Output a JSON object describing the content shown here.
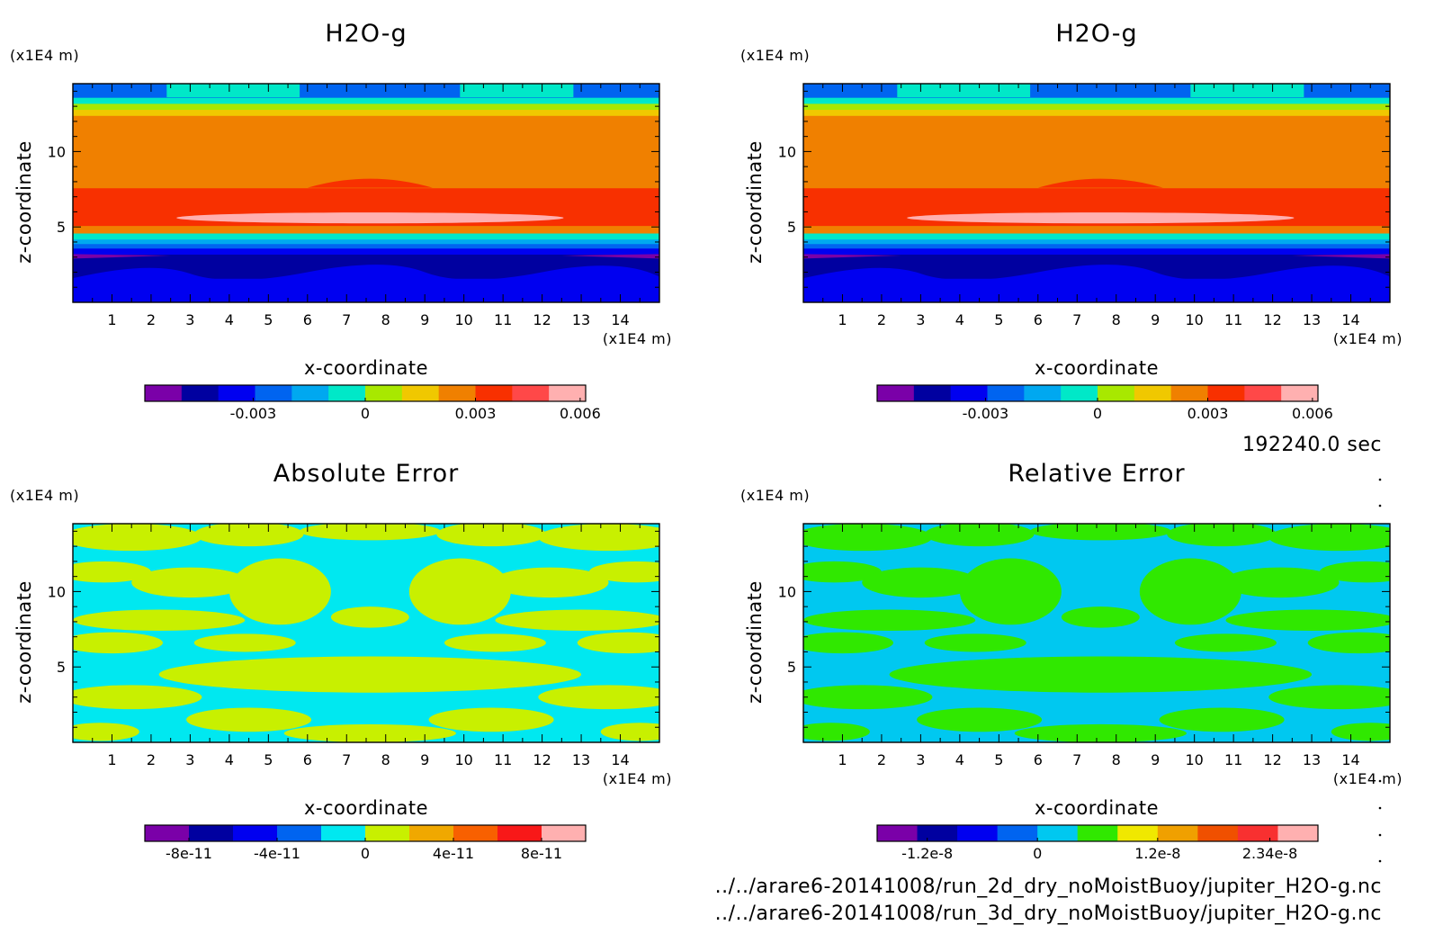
{
  "chart_data": [
    {
      "type": "heatmap",
      "title": "H2O-g",
      "xlabel": "x-coordinate",
      "ylabel": "z-coordinate",
      "x_unit": "(x1E4 m)",
      "y_unit": "(x1E4 m)",
      "xlim": [
        0,
        15
      ],
      "ylim": [
        0,
        14.5
      ],
      "x_ticks": [
        "1",
        "2",
        "3",
        "4",
        "5",
        "6",
        "7",
        "8",
        "9",
        "10",
        "11",
        "12",
        "13",
        "14"
      ],
      "y_ticks": [
        "5",
        "10"
      ],
      "bands": [
        {
          "z": [
            0,
            1.6
          ],
          "level": 2
        },
        {
          "z": [
            1.6,
            2.4
          ],
          "level": 1
        },
        {
          "z": [
            2.4,
            3.2
          ],
          "level": 1
        },
        {
          "z": [
            3.2,
            3.6
          ],
          "level": 2
        },
        {
          "z": [
            3.6,
            3.9
          ],
          "level": 3
        },
        {
          "z": [
            3.9,
            4.2
          ],
          "level": 4
        },
        {
          "z": [
            4.2,
            4.6
          ],
          "level": 5
        },
        {
          "z": [
            4.6,
            5.1
          ],
          "level": 8
        },
        {
          "z": [
            5.1,
            7.6
          ],
          "level": 9
        },
        {
          "z": [
            7.6,
            12.4
          ],
          "level": 8
        },
        {
          "z": [
            12.4,
            12.8
          ],
          "level": 7
        },
        {
          "z": [
            12.8,
            13.2
          ],
          "level": 6
        },
        {
          "z": [
            13.2,
            13.6
          ],
          "level": 5
        },
        {
          "z": [
            13.6,
            14.5
          ],
          "level": 3
        }
      ],
      "colorbar": {
        "colors": [
          "#7a00a8",
          "#0000a0",
          "#0000f0",
          "#0064f0",
          "#00a8f0",
          "#00e8c8",
          "#a8e800",
          "#f0c800",
          "#f08000",
          "#f83000",
          "#ff4848",
          "#ffb0b0"
        ],
        "tick_labels": [
          "-0.003",
          "0",
          "0.003",
          "0.006"
        ]
      }
    },
    {
      "type": "heatmap",
      "title": "H2O-g",
      "xlabel": "x-coordinate",
      "ylabel": "z-coordinate",
      "x_unit": "(x1E4 m)",
      "y_unit": "(x1E4 m)",
      "xlim": [
        0,
        15
      ],
      "ylim": [
        0,
        14.5
      ],
      "x_ticks": [
        "1",
        "2",
        "3",
        "4",
        "5",
        "6",
        "7",
        "8",
        "9",
        "10",
        "11",
        "12",
        "13",
        "14"
      ],
      "y_ticks": [
        "5",
        "10"
      ],
      "bands": [
        {
          "z": [
            0,
            1.6
          ],
          "level": 2
        },
        {
          "z": [
            1.6,
            2.4
          ],
          "level": 1
        },
        {
          "z": [
            2.4,
            3.2
          ],
          "level": 1
        },
        {
          "z": [
            3.2,
            3.6
          ],
          "level": 2
        },
        {
          "z": [
            3.6,
            3.9
          ],
          "level": 3
        },
        {
          "z": [
            3.9,
            4.2
          ],
          "level": 4
        },
        {
          "z": [
            4.2,
            4.6
          ],
          "level": 5
        },
        {
          "z": [
            4.6,
            5.1
          ],
          "level": 8
        },
        {
          "z": [
            5.1,
            7.6
          ],
          "level": 9
        },
        {
          "z": [
            7.6,
            12.4
          ],
          "level": 8
        },
        {
          "z": [
            12.4,
            12.8
          ],
          "level": 7
        },
        {
          "z": [
            12.8,
            13.2
          ],
          "level": 6
        },
        {
          "z": [
            13.2,
            13.6
          ],
          "level": 5
        },
        {
          "z": [
            13.6,
            14.5
          ],
          "level": 3
        }
      ],
      "colorbar": {
        "colors": [
          "#7a00a8",
          "#0000a0",
          "#0000f0",
          "#0064f0",
          "#00a8f0",
          "#00e8c8",
          "#a8e800",
          "#f0c800",
          "#f08000",
          "#f83000",
          "#ff4848",
          "#ffb0b0"
        ],
        "tick_labels": [
          "-0.003",
          "0",
          "0.003",
          "0.006"
        ]
      }
    },
    {
      "type": "heatmap",
      "title": "Absolute Error",
      "xlabel": "x-coordinate",
      "ylabel": "z-coordinate",
      "x_unit": "(x1E4 m)",
      "y_unit": "(x1E4 m)",
      "xlim": [
        0,
        15
      ],
      "ylim": [
        0,
        14.5
      ],
      "x_ticks": [
        "1",
        "2",
        "3",
        "4",
        "5",
        "6",
        "7",
        "8",
        "9",
        "10",
        "11",
        "12",
        "13",
        "14"
      ],
      "y_ticks": [
        "5",
        "10"
      ],
      "background_level": 4,
      "blob_level": 5,
      "colorbar": {
        "colors": [
          "#7a00a8",
          "#0000a0",
          "#0000f0",
          "#0064f0",
          "#00e8f0",
          "#c8f000",
          "#f0a800",
          "#f86000",
          "#f81818",
          "#ffb0b0"
        ],
        "tick_labels": [
          "-8e-11",
          "-4e-11",
          "0",
          "4e-11",
          "8e-11"
        ]
      }
    },
    {
      "type": "heatmap",
      "title": "Relative Error",
      "xlabel": "x-coordinate",
      "ylabel": "z-coordinate",
      "x_unit": "(x1E4 m)",
      "y_unit": "(x1E4 m)",
      "xlim": [
        0,
        15
      ],
      "ylim": [
        0,
        14.5
      ],
      "x_ticks": [
        "1",
        "2",
        "3",
        "4",
        "5",
        "6",
        "7",
        "8",
        "9",
        "10",
        "11",
        "12",
        "13",
        "14"
      ],
      "y_ticks": [
        "5",
        "10"
      ],
      "background_level": 4,
      "blob_level": 5,
      "colorbar": {
        "colors": [
          "#7a00a8",
          "#0000a0",
          "#0000f0",
          "#0064f0",
          "#00c8f0",
          "#30e800",
          "#f0e800",
          "#f0a000",
          "#f05000",
          "#f83030",
          "#ffb0b0"
        ],
        "tick_labels": [
          "-1.2e-8",
          "0",
          "1.2e-8",
          "2.34e-8"
        ]
      }
    }
  ],
  "time_label": "192240.0 sec",
  "files": [
    "../../arare6-20141008/run_2d_dry_noMoistBuoy/jupiter_H2O-g.nc",
    "../../arare6-20141008/run_3d_dry_noMoistBuoy/jupiter_H2O-g.nc"
  ]
}
